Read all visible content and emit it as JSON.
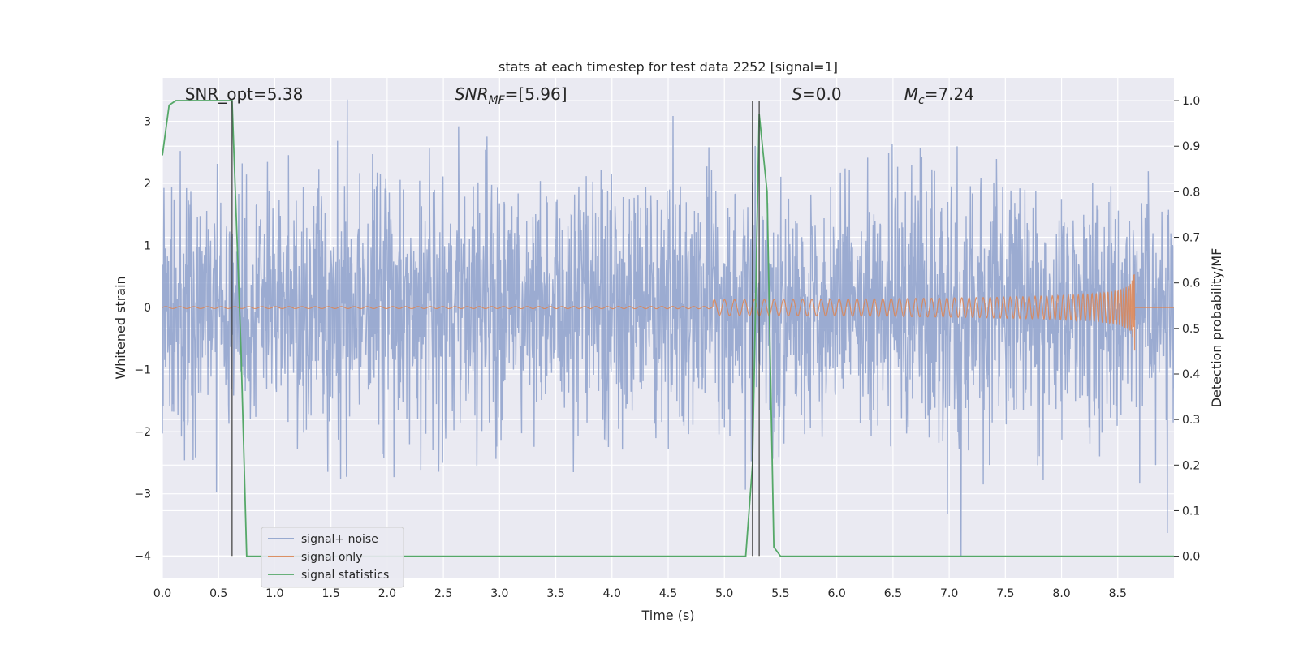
{
  "chart_data": {
    "type": "line",
    "title": "stats at each timestep for test data 2252 [signal=1]",
    "xlabel": "Time (s)",
    "ylabel": "Whitened strain",
    "ylabel_right": "Detection probability/MF",
    "xlim": [
      0.0,
      9.0
    ],
    "ylim": [
      -4.35,
      3.7
    ],
    "ylim_right": [
      -0.047,
      1.05
    ],
    "x_ticks": [
      0.0,
      0.5,
      1.0,
      1.5,
      2.0,
      2.5,
      3.0,
      3.5,
      4.0,
      4.5,
      5.0,
      5.5,
      6.0,
      6.5,
      7.0,
      7.5,
      8.0,
      8.5
    ],
    "x_tick_labels": [
      "0.0",
      "0.5",
      "1.0",
      "1.5",
      "2.0",
      "2.5",
      "3.0",
      "3.5",
      "4.0",
      "4.5",
      "5.0",
      "5.5",
      "6.0",
      "6.5",
      "7.0",
      "7.5",
      "8.0",
      "8.5"
    ],
    "y_ticks": [
      3,
      2,
      1,
      0,
      -1,
      -2,
      -3,
      -4
    ],
    "y_tick_labels": [
      "3",
      "2",
      "1",
      "0",
      "−1",
      "−2",
      "−3",
      "−4"
    ],
    "y_right_ticks": [
      1.0,
      0.9,
      0.8,
      0.7,
      0.6,
      0.5,
      0.4,
      0.3,
      0.2,
      0.1,
      0.0
    ],
    "y_right_tick_labels": [
      "1.0",
      "0.9",
      "0.8",
      "0.7",
      "0.6",
      "0.5",
      "0.4",
      "0.3",
      "0.2",
      "0.1",
      "0.0"
    ],
    "grid": true,
    "legend_placement": "lower-left",
    "annotations": [
      {
        "text": "SNR_opt=5.38",
        "x": 0.2
      },
      {
        "text": "SNR",
        "sub": "MF",
        "suffix": "=[5.96]",
        "x": 2.6
      },
      {
        "text": "S",
        "suffix": "=0.0",
        "x": 5.6
      },
      {
        "text": "M",
        "sub": "c",
        "suffix": "=7.24",
        "x": 6.6
      }
    ],
    "vertical_lines": [
      {
        "x": 0.62,
        "y_from": -4.0,
        "y_to": 1.0
      },
      {
        "x": 5.25,
        "y_from": -4.0,
        "y_to": 1.0
      },
      {
        "x": 5.31,
        "y_from": -4.0,
        "y_to": 1.0
      }
    ],
    "series": [
      {
        "name": "signal+ noise",
        "color": "#8da0cb",
        "kind": "noise",
        "sigma": 1.0,
        "x_range": [
          0.0,
          9.0
        ]
      },
      {
        "name": "signal only",
        "color": "#dd8452",
        "kind": "chirp",
        "x_start": 0.0,
        "x_end": 8.65,
        "peak_amplitude": 0.7,
        "visible_from": 4.9
      },
      {
        "name": "signal statistics",
        "color": "#55a868",
        "kind": "line",
        "axis": "right",
        "x": [
          0.0,
          0.06,
          0.12,
          0.2,
          0.3,
          0.4,
          0.5,
          0.6,
          0.62,
          0.7,
          0.75,
          0.8,
          1.0,
          2.0,
          3.0,
          4.0,
          5.0,
          5.19,
          5.25,
          5.31,
          5.38,
          5.44,
          5.5,
          6.0,
          7.0,
          8.0,
          9.0
        ],
        "y": [
          0.88,
          0.99,
          1.0,
          1.0,
          1.0,
          1.0,
          1.0,
          1.0,
          1.0,
          0.45,
          0.0,
          0.0,
          0.0,
          0.0,
          0.0,
          0.0,
          0.0,
          0.0,
          0.2,
          0.97,
          0.8,
          0.02,
          0.0,
          0.0,
          0.0,
          0.0,
          0.0
        ]
      }
    ]
  }
}
